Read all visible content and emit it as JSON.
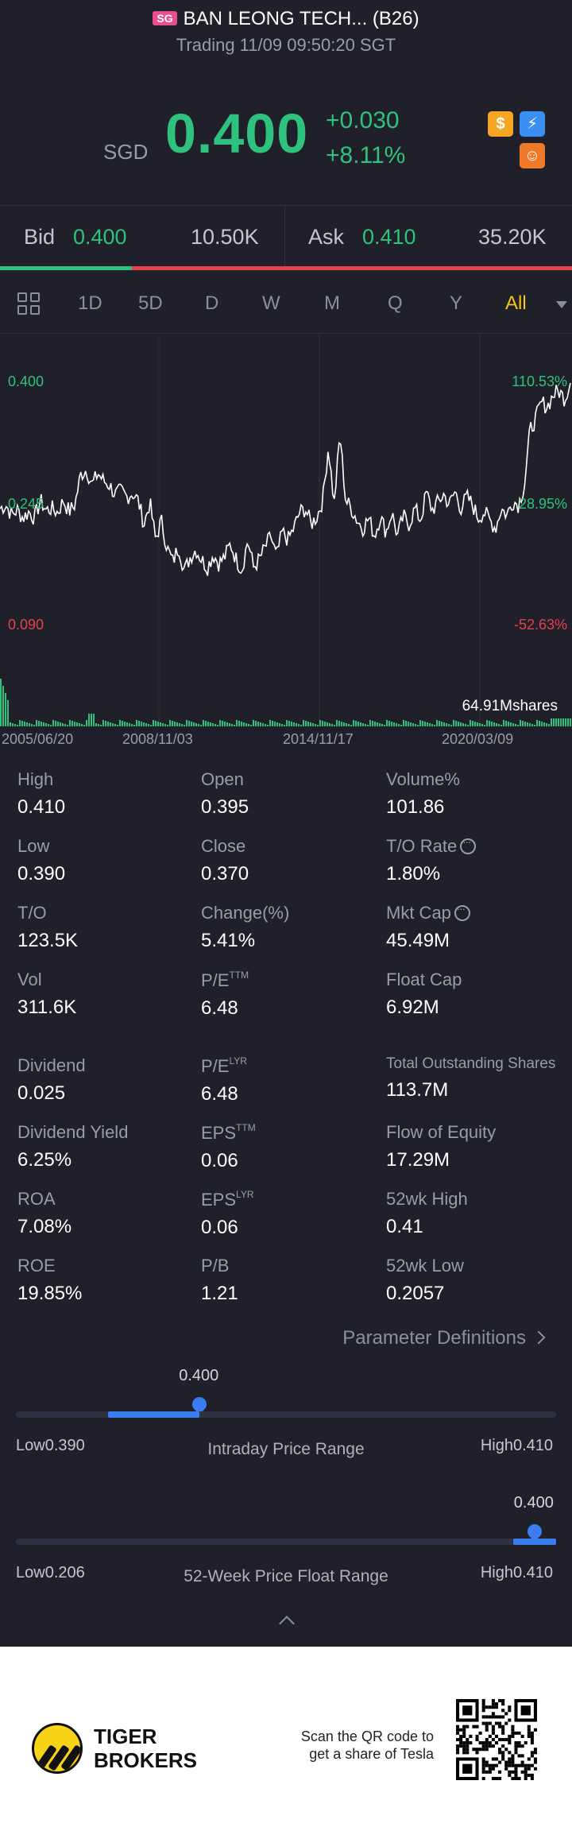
{
  "header": {
    "market_badge": "SG",
    "title": "BAN LEONG TECH... (B26)",
    "trading_status": "Trading 11/09 09:50:20 SGT",
    "currency": "SGD",
    "price": "0.400",
    "change": "+0.030",
    "change_pct": "+8.11%",
    "price_color": "#2ec27e",
    "icons": [
      "coin-icon",
      "flash-icon",
      "game-icon"
    ]
  },
  "quote": {
    "bid_label": "Bid",
    "bid_price": "0.400",
    "bid_size": "10.50K",
    "ask_label": "Ask",
    "ask_price": "0.410",
    "ask_size": "35.20K",
    "bid_ratio": 0.23
  },
  "tabs": {
    "items": [
      "1D",
      "5D",
      "D",
      "W",
      "M",
      "Q",
      "Y",
      "All"
    ],
    "active": "All"
  },
  "chart": {
    "left_axis": [
      "0.400",
      "0.245",
      "0.090"
    ],
    "right_axis": [
      "110.53%",
      "28.95%",
      "-52.63%"
    ],
    "volume_label": "64.91Mshares",
    "dates": [
      "2005/06/20",
      "2008/11/03",
      "2014/11/17",
      "2020/03/09"
    ]
  },
  "chart_data": {
    "type": "line",
    "y_range": [
      0.09,
      0.4
    ],
    "series": [
      {
        "values": [
          0.24,
          0.245,
          0.232,
          0.238,
          0.228,
          0.236,
          0.228,
          0.25,
          0.238,
          0.24,
          0.235,
          0.25,
          0.236,
          0.245,
          0.283,
          0.29,
          0.27,
          0.285,
          0.275,
          0.27,
          0.258,
          0.262,
          0.255,
          0.26,
          0.25,
          0.22,
          0.248,
          0.2,
          0.225,
          0.19,
          0.172,
          0.192,
          0.16,
          0.178,
          0.188,
          0.175,
          0.165,
          0.182,
          0.17,
          0.178,
          0.195,
          0.175,
          0.162,
          0.2,
          0.165,
          0.175,
          0.19,
          0.205,
          0.178,
          0.21,
          0.2,
          0.215,
          0.235,
          0.24,
          0.22,
          0.23,
          0.25,
          0.32,
          0.245,
          0.335,
          0.25,
          0.24,
          0.225,
          0.215,
          0.228,
          0.205,
          0.23,
          0.21,
          0.235,
          0.205,
          0.23,
          0.22,
          0.24,
          0.225,
          0.26,
          0.238,
          0.248,
          0.258,
          0.245,
          0.262,
          0.24,
          0.255,
          0.245,
          0.228,
          0.236,
          0.225,
          0.215,
          0.24,
          0.232,
          0.25,
          0.245,
          0.27,
          0.34,
          0.355,
          0.375,
          0.37,
          0.385,
          0.39,
          0.38,
          0.4
        ],
        "color": "#ffffff"
      }
    ],
    "volume_color": "#2ec27e",
    "x_labels": [
      "2005/06/20",
      "2008/11/03",
      "2014/11/17",
      "2020/03/09"
    ]
  },
  "stats": {
    "rows": [
      [
        {
          "l": "High",
          "v": "0.410"
        },
        {
          "l": "Open",
          "v": "0.395"
        },
        {
          "l": "Volume%",
          "v": "101.86"
        }
      ],
      [
        {
          "l": "Low",
          "v": "0.390"
        },
        {
          "l": "Close",
          "v": "0.370"
        },
        {
          "l": "T/O Rate",
          "v": "1.80%",
          "info": true
        }
      ],
      [
        {
          "l": "T/O",
          "v": "123.5K"
        },
        {
          "l": "Change(%)",
          "v": "5.41%"
        },
        {
          "l": "Mkt Cap",
          "v": "45.49M",
          "info": true
        }
      ],
      [
        {
          "l": "Vol",
          "v": "311.6K"
        },
        {
          "l": "P/E",
          "sup": "TTM",
          "v": "6.48"
        },
        {
          "l": "Float Cap",
          "v": "6.92M"
        }
      ],
      [
        {
          "l": "Dividend",
          "v": "0.025"
        },
        {
          "l": "P/E",
          "sup": "LYR",
          "v": "6.48"
        },
        {
          "l": "Total Outstanding Shares",
          "v": "113.7M",
          "small": true
        }
      ],
      [
        {
          "l": "Dividend Yield",
          "v": "6.25%"
        },
        {
          "l": "EPS",
          "sup": "TTM",
          "v": "0.06"
        },
        {
          "l": "Flow of Equity",
          "v": "17.29M"
        }
      ],
      [
        {
          "l": "ROA",
          "v": "7.08%"
        },
        {
          "l": "EPS",
          "sup": "LYR",
          "v": "0.06"
        },
        {
          "l": "52wk High",
          "v": "0.41"
        }
      ],
      [
        {
          "l": "ROE",
          "v": "19.85%"
        },
        {
          "l": "P/B",
          "v": "1.21"
        },
        {
          "l": "52wk Low",
          "v": "0.2057"
        }
      ]
    ],
    "param_link": "Parameter Definitions"
  },
  "intraday_range": {
    "current": "0.400",
    "low": "Low0.390",
    "high": "High0.410",
    "title": "Intraday Price Range",
    "fill_start": 0.17,
    "position": 0.34
  },
  "week52_range": {
    "current": "0.400",
    "low": "Low0.206",
    "high": "High0.410",
    "title": "52-Week Price Float Range",
    "fill_start": 0.92,
    "position": 0.96
  },
  "footer": {
    "brand_line1": "TIGER",
    "brand_line2": "BROKERS",
    "scan_line1": "Scan the QR code to",
    "scan_line2": "get a share of Tesla"
  }
}
